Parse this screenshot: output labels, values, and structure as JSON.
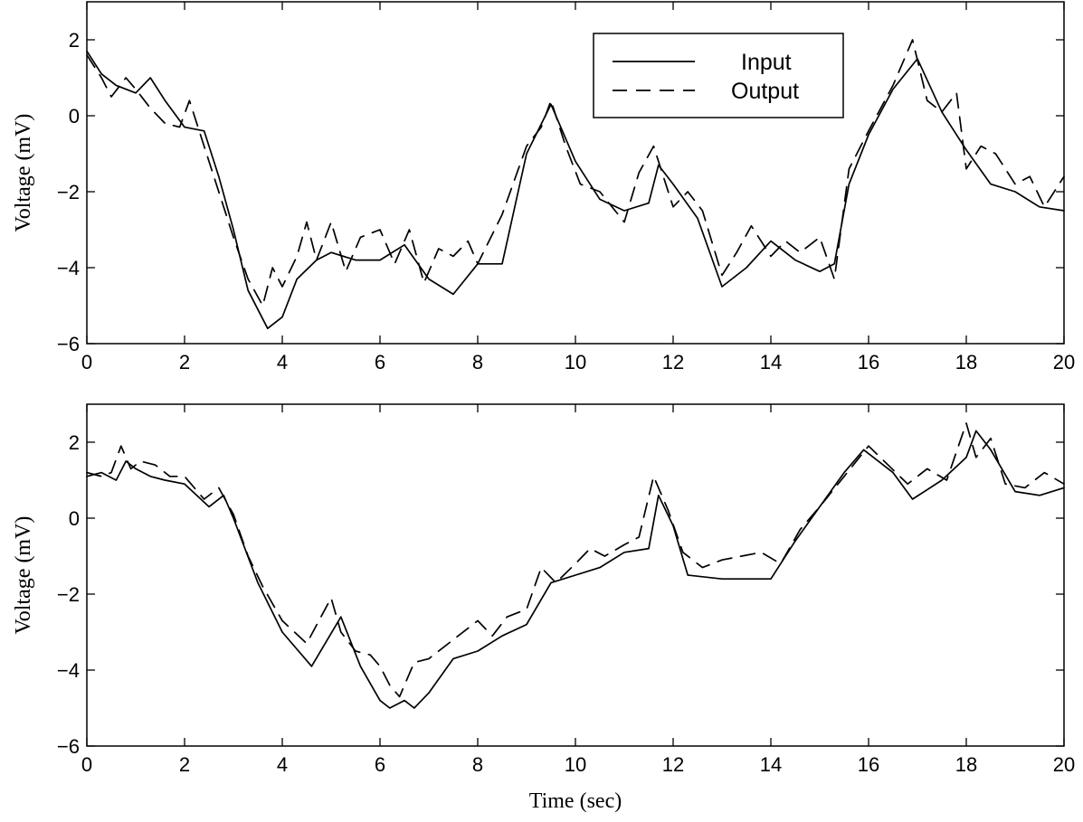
{
  "chart_data": [
    {
      "type": "line",
      "title": "",
      "xlabel": "",
      "ylabel": "Voltage (mV)",
      "xlim": [
        0,
        20
      ],
      "ylim": [
        -6,
        3
      ],
      "xticks": [
        0,
        2,
        4,
        6,
        8,
        10,
        12,
        14,
        16,
        18,
        20
      ],
      "yticks": [
        -6,
        -4,
        -2,
        0,
        2
      ],
      "grid": false,
      "legend": "top-right",
      "series": [
        {
          "name": "Input",
          "style": "solid",
          "x": [
            0,
            0.3,
            0.6,
            1.0,
            1.3,
            1.6,
            2.0,
            2.4,
            2.7,
            3.0,
            3.3,
            3.7,
            4.0,
            4.3,
            4.7,
            5.0,
            5.5,
            6.0,
            6.5,
            7.0,
            7.5,
            8.0,
            8.5,
            9.0,
            9.5,
            10.0,
            10.5,
            11.0,
            11.5,
            11.7,
            12.0,
            12.5,
            13.0,
            13.5,
            14.0,
            14.5,
            15.0,
            15.3,
            15.6,
            16.0,
            16.5,
            17.0,
            17.5,
            18.0,
            18.5,
            19.0,
            19.5,
            20.0
          ],
          "y": [
            1.7,
            1.1,
            0.8,
            0.6,
            1.0,
            0.4,
            -0.3,
            -0.4,
            -1.6,
            -3.0,
            -4.6,
            -5.6,
            -5.3,
            -4.3,
            -3.8,
            -3.6,
            -3.8,
            -3.8,
            -3.4,
            -4.3,
            -4.7,
            -3.9,
            -3.9,
            -1.0,
            0.3,
            -1.2,
            -2.2,
            -2.5,
            -2.3,
            -1.3,
            -1.8,
            -2.7,
            -4.5,
            -4.0,
            -3.3,
            -3.8,
            -4.1,
            -3.9,
            -1.8,
            -0.5,
            0.7,
            1.5,
            0.1,
            -0.9,
            -1.8,
            -2.0,
            -2.4,
            -2.5
          ]
        },
        {
          "name": "Output",
          "style": "dashed",
          "x": [
            0,
            0.3,
            0.5,
            0.8,
            1.0,
            1.3,
            1.6,
            1.9,
            2.1,
            2.4,
            2.7,
            3.0,
            3.3,
            3.6,
            3.8,
            4.0,
            4.3,
            4.5,
            4.7,
            5.0,
            5.3,
            5.6,
            6.0,
            6.3,
            6.6,
            6.9,
            7.2,
            7.5,
            7.8,
            8.0,
            8.5,
            9.0,
            9.3,
            9.5,
            9.8,
            10.1,
            10.5,
            11.0,
            11.3,
            11.6,
            12.0,
            12.3,
            12.6,
            13.0,
            13.3,
            13.6,
            14.0,
            14.3,
            14.6,
            15.0,
            15.3,
            15.6,
            16.0,
            16.5,
            16.9,
            17.2,
            17.5,
            17.8,
            18.0,
            18.3,
            18.6,
            19.0,
            19.3,
            19.6,
            20.0
          ],
          "y": [
            1.6,
            1.0,
            0.5,
            1.0,
            0.7,
            0.2,
            -0.2,
            -0.3,
            0.4,
            -0.8,
            -2.0,
            -3.2,
            -4.3,
            -5.0,
            -4.0,
            -4.5,
            -3.7,
            -2.8,
            -3.8,
            -2.8,
            -4.1,
            -3.2,
            -3.0,
            -3.9,
            -3.0,
            -4.4,
            -3.5,
            -3.7,
            -3.3,
            -3.9,
            -2.6,
            -0.8,
            -0.3,
            0.4,
            -0.8,
            -1.8,
            -2.0,
            -2.8,
            -1.5,
            -0.8,
            -2.4,
            -2.0,
            -2.5,
            -4.2,
            -3.6,
            -2.9,
            -3.7,
            -3.3,
            -3.6,
            -3.2,
            -4.3,
            -1.4,
            -0.4,
            0.8,
            2.0,
            0.4,
            0.1,
            0.6,
            -1.4,
            -0.8,
            -1.0,
            -1.8,
            -1.6,
            -2.4,
            -1.6
          ]
        }
      ]
    },
    {
      "type": "line",
      "title": "",
      "xlabel": "Time (sec)",
      "ylabel": "Voltage (mV)",
      "xlim": [
        0,
        20
      ],
      "ylim": [
        -6,
        3
      ],
      "xticks": [
        0,
        2,
        4,
        6,
        8,
        10,
        12,
        14,
        16,
        18,
        20
      ],
      "yticks": [
        -6,
        -4,
        -2,
        0,
        2
      ],
      "grid": false,
      "series": [
        {
          "style": "solid",
          "x": [
            0,
            0.3,
            0.6,
            0.8,
            1.0,
            1.3,
            1.6,
            2.0,
            2.5,
            2.8,
            3.0,
            3.5,
            4.0,
            4.6,
            5.2,
            5.6,
            6.0,
            6.2,
            6.5,
            6.7,
            7.0,
            7.5,
            8.0,
            8.5,
            9.0,
            9.5,
            10.0,
            10.5,
            11.0,
            11.5,
            11.7,
            12.0,
            12.3,
            13.0,
            13.5,
            14.0,
            14.5,
            15.0,
            15.5,
            15.9,
            16.5,
            16.9,
            17.5,
            18.0,
            18.2,
            18.5,
            19.0,
            19.5,
            20.0
          ],
          "y": [
            1.1,
            1.2,
            1.0,
            1.5,
            1.3,
            1.1,
            1.0,
            0.9,
            0.3,
            0.6,
            0.0,
            -1.7,
            -3.0,
            -3.9,
            -2.6,
            -3.9,
            -4.8,
            -5.0,
            -4.8,
            -5.0,
            -4.6,
            -3.7,
            -3.5,
            -3.1,
            -2.8,
            -1.7,
            -1.5,
            -1.3,
            -0.9,
            -0.8,
            0.6,
            -0.2,
            -1.5,
            -1.6,
            -1.6,
            -1.6,
            -0.6,
            0.3,
            1.2,
            1.8,
            1.2,
            0.5,
            1.0,
            1.6,
            2.3,
            1.8,
            0.7,
            0.6,
            0.8
          ]
        },
        {
          "style": "dashed",
          "x": [
            0,
            0.3,
            0.5,
            0.7,
            0.9,
            1.1,
            1.4,
            1.7,
            2.0,
            2.4,
            2.7,
            3.0,
            3.3,
            3.6,
            4.0,
            4.5,
            5.0,
            5.2,
            5.5,
            5.8,
            6.0,
            6.2,
            6.4,
            6.7,
            7.0,
            7.5,
            8.0,
            8.3,
            8.6,
            9.0,
            9.3,
            9.6,
            10.0,
            10.3,
            10.6,
            11.0,
            11.3,
            11.6,
            11.9,
            12.2,
            12.6,
            13.0,
            13.4,
            13.8,
            14.2,
            14.6,
            15.0,
            15.5,
            16.0,
            16.4,
            16.8,
            17.2,
            17.6,
            18.0,
            18.2,
            18.5,
            18.8,
            19.2,
            19.6,
            20.0
          ],
          "y": [
            1.2,
            1.1,
            1.2,
            1.9,
            1.3,
            1.5,
            1.4,
            1.1,
            1.1,
            0.5,
            0.8,
            0.1,
            -1.0,
            -1.8,
            -2.7,
            -3.3,
            -2.1,
            -3.0,
            -3.5,
            -3.6,
            -3.9,
            -4.4,
            -4.7,
            -3.8,
            -3.7,
            -3.2,
            -2.7,
            -3.1,
            -2.6,
            -2.4,
            -1.3,
            -1.7,
            -1.2,
            -0.8,
            -1.0,
            -0.7,
            -0.5,
            1.1,
            0.2,
            -0.9,
            -1.3,
            -1.1,
            -1.0,
            -0.9,
            -1.2,
            -0.3,
            0.3,
            1.1,
            1.9,
            1.4,
            0.9,
            1.3,
            1.0,
            2.5,
            1.6,
            2.1,
            0.9,
            0.8,
            1.2,
            0.9
          ]
        }
      ]
    }
  ]
}
